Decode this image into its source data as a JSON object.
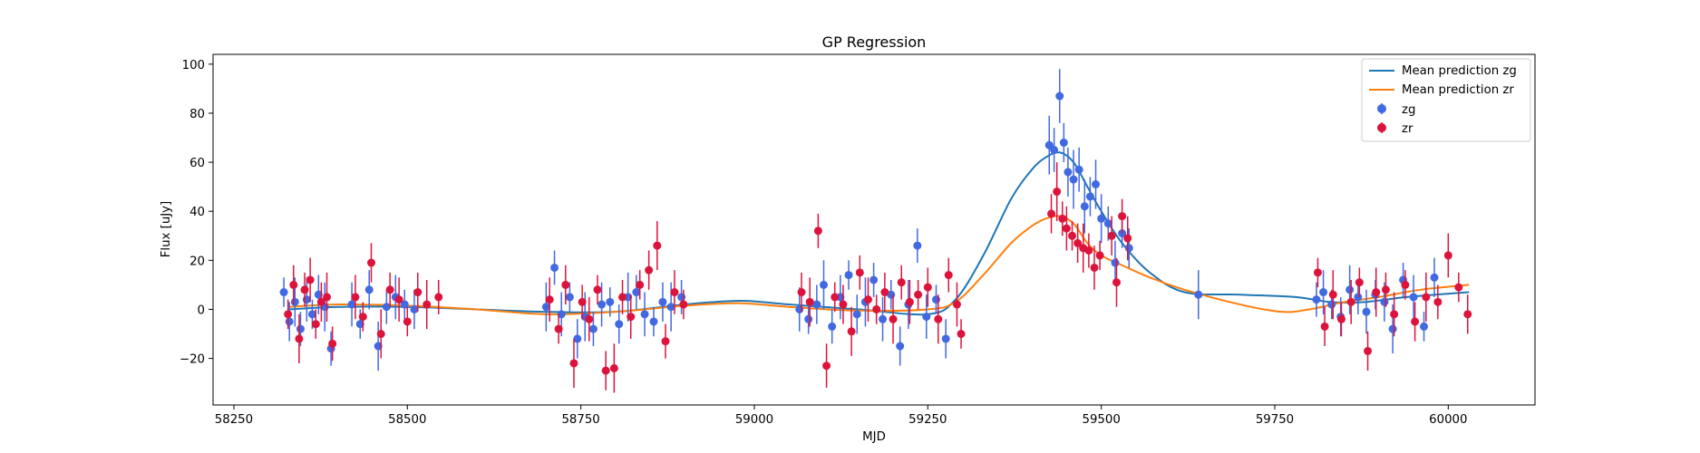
{
  "chart_data": {
    "type": "scatter",
    "title": "GP Regression",
    "xlabel": "MJD",
    "ylabel": "Flux [uJy]",
    "xlim": [
      58220,
      60125
    ],
    "ylim": [
      -39,
      104
    ],
    "xticks": [
      58250,
      58500,
      58750,
      59000,
      59250,
      59500,
      59750,
      60000
    ],
    "yticks": [
      -20,
      0,
      20,
      40,
      60,
      80,
      100
    ],
    "grid": false,
    "legend_position": "top-right",
    "legend": [
      "Mean prediction zg",
      "Mean prediction zr",
      "zg",
      "zr"
    ],
    "colors": {
      "mean_zg": "#1f77b4",
      "mean_zr": "#ff7f0e",
      "zg": "#4169e1",
      "zr": "#dc143c"
    },
    "lines": [
      {
        "name": "Mean prediction zg",
        "x": [
          58330,
          58400,
          58500,
          58600,
          58700,
          58800,
          58900,
          58980,
          59050,
          59150,
          59250,
          59290,
          59330,
          59370,
          59400,
          59420,
          59440,
          59460,
          59480,
          59500,
          59530,
          59570,
          59620,
          59700,
          59780,
          59830,
          59880,
          59940,
          60030
        ],
        "y": [
          0,
          1,
          1,
          0,
          -1,
          -1,
          2,
          3.5,
          2,
          0,
          -2,
          4,
          22,
          45,
          57,
          62,
          64,
          60,
          50,
          40,
          27,
          15,
          7,
          6,
          5,
          3,
          3,
          5,
          7
        ]
      },
      {
        "name": "Mean prediction zr",
        "x": [
          58330,
          58400,
          58500,
          58600,
          58700,
          58800,
          58900,
          58980,
          59050,
          59150,
          59250,
          59290,
          59330,
          59370,
          59400,
          59420,
          59440,
          59460,
          59480,
          59500,
          59530,
          59570,
          59620,
          59700,
          59760,
          59800,
          59850,
          59900,
          59960,
          60030
        ],
        "y": [
          1,
          2,
          1.5,
          0,
          -2,
          -1,
          1.5,
          2.5,
          1,
          -0.5,
          0,
          3,
          14,
          27,
          34,
          37,
          38,
          35,
          27,
          22,
          18,
          13,
          8,
          2,
          -1,
          0,
          3,
          5,
          8,
          10
        ]
      }
    ],
    "series": [
      {
        "name": "zg",
        "x": [
          58322,
          58330,
          58338,
          58346,
          58355,
          58363,
          58372,
          58381,
          58390,
          58420,
          58432,
          58445,
          58458,
          58470,
          58483,
          58496,
          58510,
          58700,
          58712,
          58722,
          58734,
          58745,
          58756,
          58768,
          58780,
          58792,
          58805,
          58818,
          58830,
          58842,
          58855,
          58868,
          58880,
          58895,
          59065,
          59078,
          59090,
          59100,
          59112,
          59124,
          59136,
          59148,
          59160,
          59172,
          59185,
          59197,
          59210,
          59222,
          59235,
          59248,
          59262,
          59276,
          59425,
          59432,
          59440,
          59446,
          59452,
          59460,
          59468,
          59476,
          59484,
          59492,
          59500,
          59510,
          59520,
          59530,
          59540,
          59640,
          59810,
          59820,
          59832,
          59845,
          59858,
          59870,
          59882,
          59895,
          59908,
          59920,
          59935,
          59950,
          59965,
          59980
        ],
        "y": [
          7,
          -5,
          3,
          -8,
          4,
          -2,
          6,
          1,
          -16,
          2,
          -6,
          8,
          -15,
          1,
          5,
          2,
          0,
          1,
          17,
          -2,
          5,
          -12,
          -3,
          -8,
          2,
          3,
          -6,
          5,
          7,
          -2,
          -5,
          3,
          1,
          5,
          0,
          -4,
          2,
          10,
          -7,
          5,
          14,
          -2,
          3,
          12,
          -4,
          6,
          -15,
          2,
          26,
          -3,
          4,
          -12,
          67,
          65,
          87,
          68,
          56,
          53,
          57,
          42,
          46,
          51,
          37,
          35,
          19,
          31,
          25,
          6,
          4,
          7,
          2,
          -3,
          8,
          5,
          -1,
          6,
          3,
          -8,
          12,
          5,
          -7,
          13
        ]
      },
      {
        "name": "zr",
        "x": [
          58328,
          58336,
          58344,
          58352,
          58360,
          58368,
          58376,
          58384,
          58392,
          58425,
          58436,
          58448,
          58462,
          58475,
          58488,
          58500,
          58515,
          58528,
          58545,
          58705,
          58718,
          58728,
          58740,
          58752,
          58762,
          58774,
          58786,
          58798,
          58810,
          58822,
          58835,
          58848,
          58860,
          58872,
          58885,
          58898,
          59068,
          59080,
          59092,
          59104,
          59116,
          59128,
          59140,
          59152,
          59164,
          59176,
          59188,
          59200,
          59212,
          59224,
          59236,
          59250,
          59265,
          59280,
          59292,
          59298,
          59428,
          59436,
          59444,
          59450,
          59458,
          59466,
          59474,
          59482,
          59490,
          59498,
          59515,
          59522,
          59530,
          59538,
          59812,
          59822,
          59834,
          59846,
          59860,
          59872,
          59884,
          59896,
          59910,
          59922,
          59938,
          59952,
          59968,
          59985,
          60000,
          60015,
          60028
        ],
        "y": [
          -2,
          10,
          -12,
          8,
          12,
          -6,
          3,
          5,
          -14,
          5,
          -3,
          19,
          -10,
          8,
          4,
          -5,
          7,
          2,
          5,
          4,
          -8,
          10,
          -22,
          3,
          -4,
          8,
          -25,
          -24,
          5,
          -3,
          10,
          16,
          26,
          -13,
          7,
          2,
          7,
          3,
          32,
          -23,
          5,
          2,
          -9,
          15,
          4,
          0,
          7,
          -4,
          11,
          3,
          6,
          9,
          -4,
          14,
          2,
          -10,
          39,
          48,
          37,
          33,
          30,
          27,
          25,
          24,
          17,
          22,
          30,
          11,
          38,
          29,
          15,
          -7,
          6,
          -4,
          3,
          11,
          -17,
          7,
          8,
          -2,
          10,
          -5,
          5,
          3,
          22,
          9,
          -2
        ]
      }
    ]
  }
}
